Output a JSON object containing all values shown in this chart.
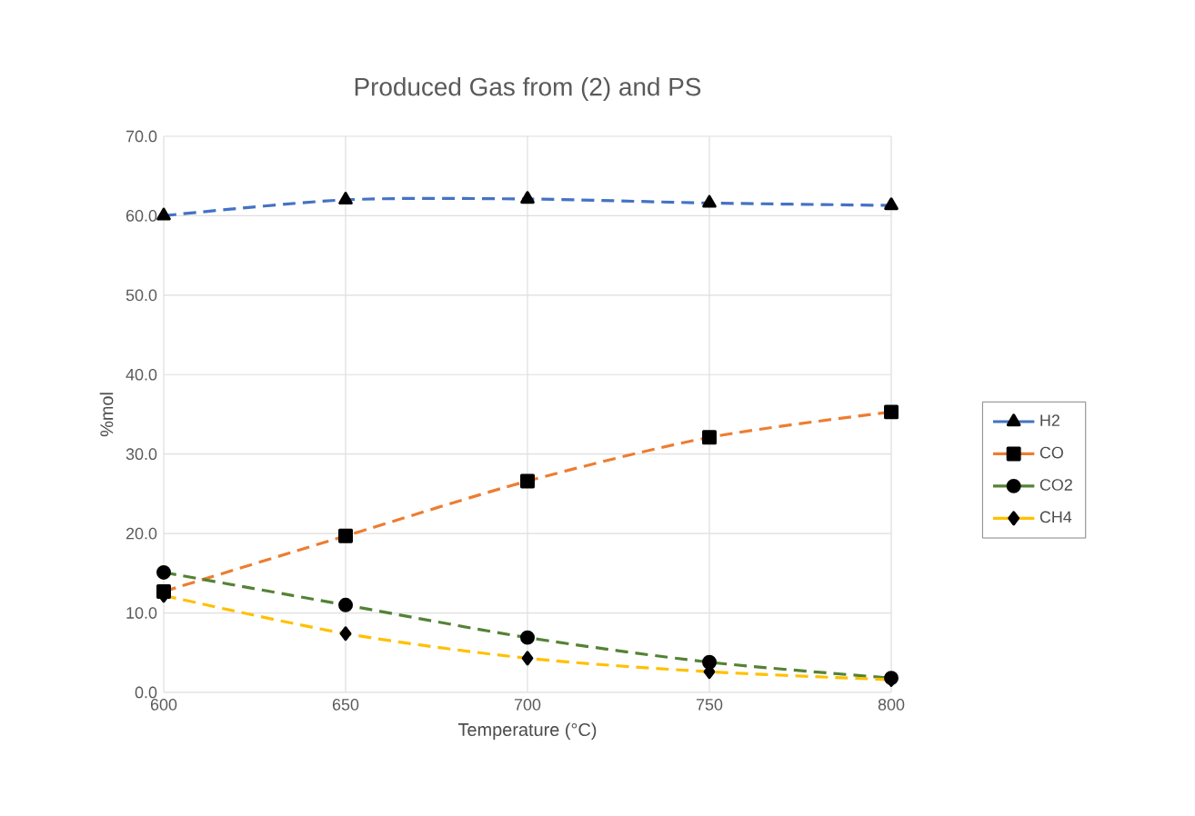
{
  "chart_data": {
    "type": "line",
    "title": "Produced Gas from (2) and PS",
    "xlabel": "Temperature (°C)",
    "ylabel": "%mol",
    "x": [
      600,
      650,
      700,
      750,
      800
    ],
    "series": [
      {
        "name": "H2",
        "color": "#4472c4",
        "marker": "triangle",
        "values": [
          60.0,
          62.0,
          62.1,
          61.6,
          61.3
        ]
      },
      {
        "name": "CO",
        "color": "#ed7d31",
        "marker": "square",
        "values": [
          12.7,
          19.7,
          26.6,
          32.1,
          35.3
        ]
      },
      {
        "name": "CO2",
        "color": "#548235",
        "marker": "circle",
        "values": [
          15.1,
          11.0,
          6.9,
          3.8,
          1.8
        ]
      },
      {
        "name": "CH4",
        "color": "#ffc000",
        "marker": "diamond",
        "values": [
          12.2,
          7.4,
          4.3,
          2.6,
          1.6
        ]
      }
    ],
    "xlim": [
      600,
      800
    ],
    "xticks": [
      600,
      650,
      700,
      750,
      800
    ],
    "ylim": [
      0,
      70
    ],
    "yticks": [
      {
        "value": 0,
        "label": "0.0"
      },
      {
        "value": 10,
        "label": "10.0"
      },
      {
        "value": 20,
        "label": "20.0"
      },
      {
        "value": 30,
        "label": "30.0"
      },
      {
        "value": 40,
        "label": "40.0"
      },
      {
        "value": 50,
        "label": "50.0"
      },
      {
        "value": 60,
        "label": "60.0"
      },
      {
        "value": 70,
        "label": "70.0"
      }
    ],
    "grid": true,
    "legend": "right",
    "line_style": "dashed"
  }
}
